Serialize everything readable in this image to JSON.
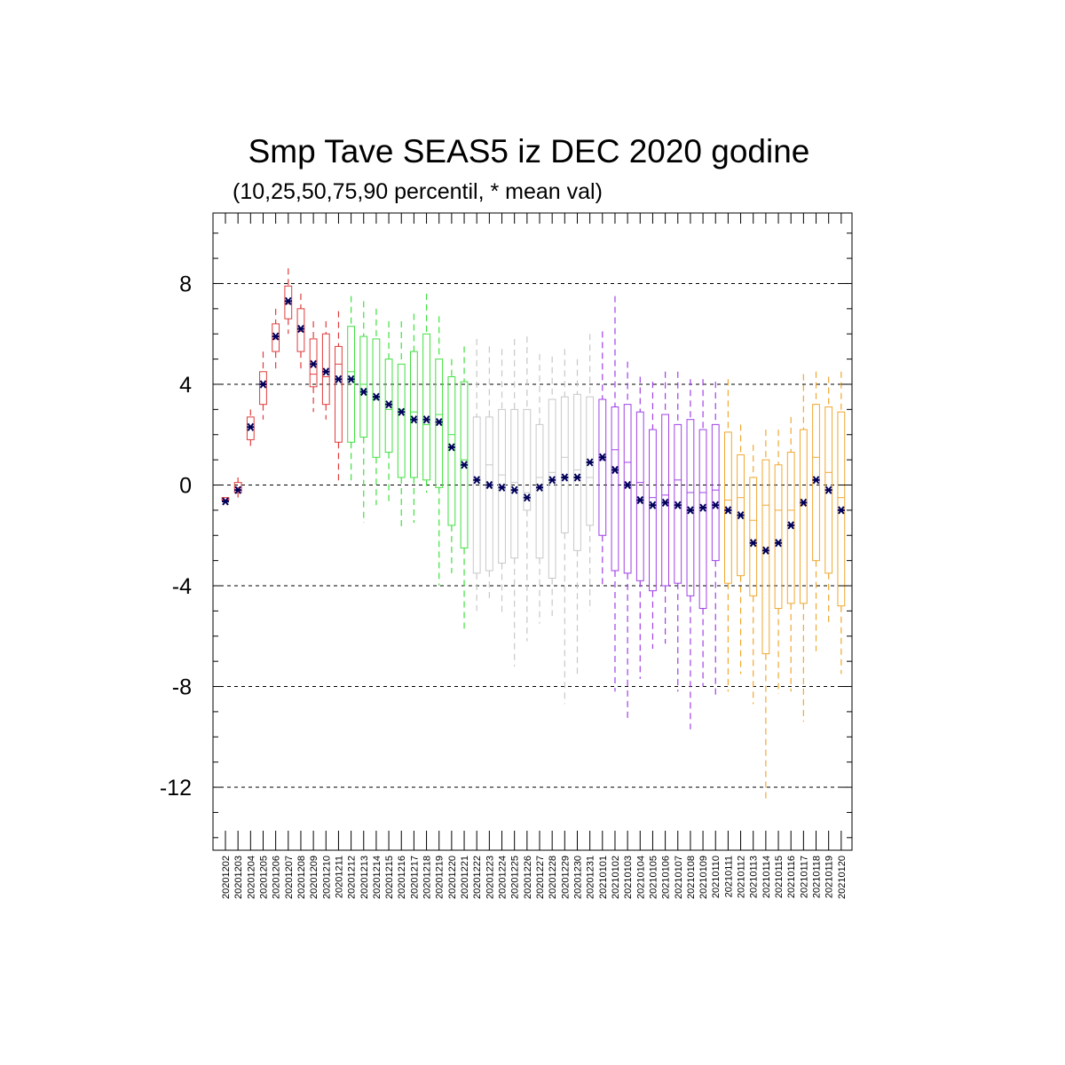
{
  "chart_data": {
    "type": "box",
    "title": "Smp Tave SEAS5 iz DEC 2020 godine",
    "subtitle": "(10,25,50,75,90 percentil, * mean val)",
    "xlabel": "",
    "ylabel": "",
    "ylim": [
      -14.5,
      10.8
    ],
    "yticks": [
      8,
      4,
      0,
      -4,
      -8,
      -12
    ],
    "ytick_labels": [
      "8",
      "4",
      "0",
      "-4",
      "-8",
      "-12"
    ],
    "grid": "dashed horizontal at major y ticks",
    "legend": "none",
    "categories": [
      "20201202",
      "20201203",
      "20201204",
      "20201205",
      "20201206",
      "20201207",
      "20201208",
      "20201209",
      "20201210",
      "20201211",
      "20201212",
      "20201213",
      "20201214",
      "20201215",
      "20201216",
      "20201217",
      "20201218",
      "20201219",
      "20201220",
      "20201221",
      "20201222",
      "20201223",
      "20201224",
      "20201225",
      "20201226",
      "20201227",
      "20201228",
      "20201229",
      "20201230",
      "20201231",
      "20210101",
      "20210102",
      "20210103",
      "20210104",
      "20210105",
      "20210106",
      "20210107",
      "20210108",
      "20210109",
      "20210110",
      "20210111",
      "20210112",
      "20210113",
      "20210114",
      "20210115",
      "20210116",
      "20210117",
      "20210118",
      "20210119",
      "20210120"
    ],
    "colors": [
      "#e03c3c",
      "#e03c3c",
      "#e03c3c",
      "#e03c3c",
      "#e03c3c",
      "#e03c3c",
      "#e03c3c",
      "#e03c3c",
      "#e03c3c",
      "#e03c3c",
      "#3fe03f",
      "#3fe03f",
      "#3fe03f",
      "#3fe03f",
      "#3fe03f",
      "#3fe03f",
      "#3fe03f",
      "#3fe03f",
      "#3fe03f",
      "#3fe03f",
      "#c8c8c8",
      "#c8c8c8",
      "#c8c8c8",
      "#c8c8c8",
      "#c8c8c8",
      "#c8c8c8",
      "#c8c8c8",
      "#c8c8c8",
      "#c8c8c8",
      "#c8c8c8",
      "#a040e8",
      "#a040e8",
      "#a040e8",
      "#a040e8",
      "#a040e8",
      "#a040e8",
      "#a040e8",
      "#a040e8",
      "#a040e8",
      "#a040e8",
      "#f0a830",
      "#f0a830",
      "#f0a830",
      "#f0a830",
      "#f0a830",
      "#f0a830",
      "#f0a830",
      "#f0a830",
      "#f0a830",
      "#f0a830"
    ],
    "mean_marker_color": "#00005a",
    "p10": [
      -0.7,
      -0.5,
      1.4,
      2.6,
      4.6,
      6.0,
      4.5,
      2.9,
      2.6,
      0.1,
      0.0,
      -1.5,
      -0.8,
      -0.8,
      -1.7,
      -1.5,
      -0.3,
      -4.0,
      -3.5,
      -5.7,
      -5.0,
      -4.6,
      -5.1,
      -7.2,
      -6.2,
      -5.5,
      -5.2,
      -8.7,
      -7.6,
      -5.0,
      -4.0,
      -8.2,
      -9.4,
      -7.7,
      -6.5,
      -6.3,
      -8.2,
      -9.7,
      -8.0,
      -8.4,
      -8.2,
      -7.5,
      -8.7,
      -12.6,
      -8.3,
      -8.2,
      -9.4,
      -6.6,
      -5.5,
      -7.5
    ],
    "p25": [
      -0.6,
      -0.3,
      1.8,
      3.2,
      5.3,
      6.6,
      5.3,
      3.9,
      3.2,
      1.7,
      1.7,
      1.9,
      1.1,
      1.3,
      0.3,
      0.3,
      0.2,
      -0.1,
      -1.6,
      -2.5,
      -3.5,
      -3.4,
      -3.1,
      -2.9,
      -1.0,
      -2.9,
      -3.7,
      -1.9,
      -2.6,
      -1.6,
      -2.0,
      -3.4,
      -3.5,
      -3.8,
      -4.2,
      -4.0,
      -3.9,
      -4.4,
      -4.9,
      -3.0,
      -3.9,
      -3.6,
      -4.4,
      -6.7,
      -4.9,
      -4.7,
      -4.7,
      -3.0,
      -3.5,
      -4.8
    ],
    "p50": [
      -0.6,
      -0.1,
      2.3,
      4.0,
      5.8,
      7.2,
      6.1,
      4.4,
      4.3,
      4.8,
      4.5,
      4.0,
      3.4,
      3.0,
      3.0,
      2.9,
      2.4,
      2.8,
      2.0,
      1.0,
      0.3,
      0.8,
      0.4,
      0.1,
      -0.3,
      0.3,
      0.5,
      1.1,
      0.6,
      0.3,
      1.0,
      1.4,
      0.9,
      0.1,
      -0.5,
      -0.4,
      0.2,
      -0.3,
      -0.3,
      -0.2,
      -0.6,
      -0.5,
      -1.4,
      -0.8,
      -1.0,
      -1.0,
      -0.8,
      1.1,
      0.5,
      -0.5
    ],
    "p75": [
      -0.5,
      0.1,
      2.7,
      4.5,
      6.4,
      7.9,
      7.0,
      5.8,
      6.0,
      5.5,
      6.3,
      5.9,
      5.8,
      5.0,
      4.8,
      5.3,
      6.0,
      5.0,
      4.3,
      4.1,
      2.7,
      2.7,
      3.0,
      3.0,
      3.0,
      2.4,
      3.4,
      3.5,
      3.6,
      3.5,
      3.4,
      3.1,
      3.2,
      2.9,
      2.2,
      2.8,
      2.4,
      2.6,
      2.2,
      2.4,
      2.1,
      1.2,
      0.3,
      1.0,
      0.8,
      1.3,
      2.2,
      3.2,
      3.1,
      2.9
    ],
    "p90": [
      -0.5,
      0.3,
      3.0,
      5.3,
      7.0,
      8.6,
      7.6,
      6.5,
      6.5,
      6.9,
      7.5,
      7.3,
      7.0,
      6.5,
      6.5,
      6.8,
      7.6,
      6.7,
      5.0,
      5.5,
      5.8,
      5.5,
      5.4,
      5.8,
      5.9,
      5.2,
      5.1,
      5.4,
      5.0,
      6.0,
      6.1,
      7.5,
      4.9,
      4.3,
      4.1,
      4.5,
      4.5,
      4.2,
      4.2,
      4.1,
      4.2,
      2.4,
      1.6,
      2.2,
      2.2,
      2.7,
      4.4,
      4.5,
      4.3,
      4.5
    ],
    "mean": [
      -0.65,
      -0.2,
      2.3,
      4.0,
      5.9,
      7.3,
      6.2,
      4.8,
      4.5,
      4.2,
      4.2,
      3.7,
      3.5,
      3.2,
      2.9,
      2.6,
      2.6,
      2.5,
      1.5,
      0.8,
      0.2,
      0.0,
      -0.1,
      -0.2,
      -0.5,
      -0.1,
      0.2,
      0.3,
      0.3,
      0.9,
      1.1,
      0.6,
      0.0,
      -0.6,
      -0.8,
      -0.7,
      -0.8,
      -1.0,
      -0.9,
      -0.8,
      -1.0,
      -1.2,
      -2.3,
      -2.6,
      -2.3,
      -1.6,
      -0.7,
      0.2,
      -0.2,
      -1.0
    ]
  }
}
